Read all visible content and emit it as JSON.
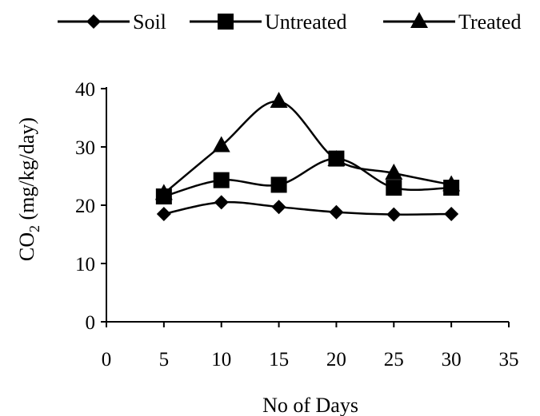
{
  "chart_data": {
    "type": "line",
    "title": "",
    "xlabel": "No of Days",
    "ylabel": "CO",
    "ylabel_subscript": "2",
    "ylabel_unit": " (mg/kg/day)",
    "xlim": [
      0,
      35
    ],
    "ylim": [
      0,
      40
    ],
    "x_ticks": [
      0,
      5,
      10,
      15,
      20,
      25,
      30,
      35
    ],
    "y_ticks": [
      0,
      10,
      20,
      30,
      40
    ],
    "grid": false,
    "legend_position": "top",
    "x": [
      5,
      10,
      15,
      20,
      25,
      30
    ],
    "series": [
      {
        "name": "Soil",
        "marker": "diamond",
        "values": [
          18.5,
          20.5,
          19.7,
          18.8,
          18.4,
          18.5
        ]
      },
      {
        "name": "Untreated",
        "marker": "square",
        "values": [
          21.5,
          24.3,
          23.5,
          28.0,
          23.0,
          23.0
        ]
      },
      {
        "name": "Treated",
        "marker": "triangle",
        "values": [
          22.0,
          30.2,
          37.8,
          27.8,
          25.5,
          23.5
        ]
      }
    ],
    "line_color": "#000000"
  }
}
